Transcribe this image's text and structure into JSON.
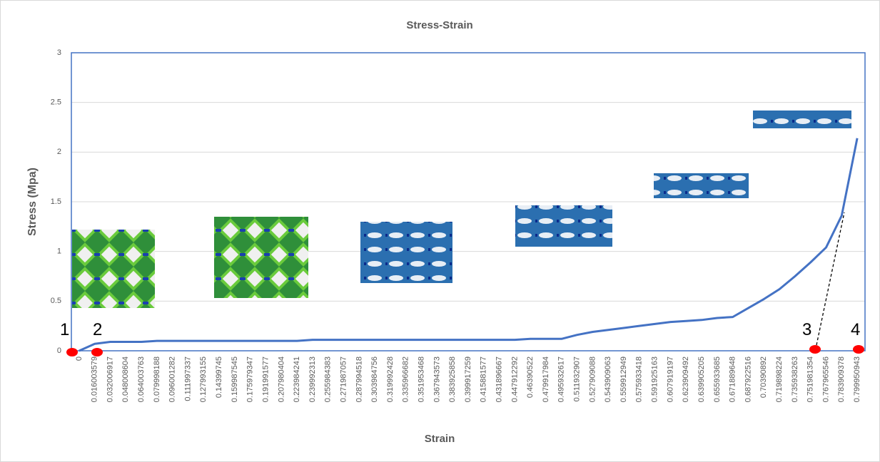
{
  "chart_data": {
    "type": "line",
    "title": "Stress-Strain",
    "x_label": "Strain",
    "y_label": "Stress (Mpa)",
    "categories": [
      "0",
      "0.016003579",
      "0.032006917",
      "0.048008604",
      "0.064003763",
      "0.079998188",
      "0.096001282",
      "0.111997337",
      "0.127993155",
      "0.14399745",
      "0.159987545",
      "0.175979347",
      "0.191991577",
      "0.207980404",
      "0.223984241",
      "0.239992313",
      "0.255984383",
      "0.271987057",
      "0.287994518",
      "0.303984756",
      "0.319992428",
      "0.335966682",
      "0.351953468",
      "0.367943573",
      "0.383925858",
      "0.399917259",
      "0.415881577",
      "0.431896667",
      "0.447912292",
      "0.46390522",
      "0.479917984",
      "0.495932617",
      "0.511932907",
      "0.527909088",
      "0.543909063",
      "0.559912949",
      "0.575933418",
      "0.591925163",
      "0.607919197",
      "0.623909492",
      "0.639905205",
      "0.655933685",
      "0.671889648",
      "0.687922516",
      "0.70390892",
      "0.719898224",
      "0.735938263",
      "0.751981354",
      "0.767965546",
      "0.783909378",
      "0.799950943"
    ],
    "series": [
      {
        "name": "Stress",
        "color": "#4472c4",
        "values": [
          0,
          0.07,
          0.09,
          0.09,
          0.09,
          0.1,
          0.1,
          0.1,
          0.1,
          0.1,
          0.1,
          0.1,
          0.1,
          0.1,
          0.1,
          0.11,
          0.11,
          0.11,
          0.11,
          0.11,
          0.11,
          0.11,
          0.11,
          0.11,
          0.11,
          0.11,
          0.11,
          0.11,
          0.11,
          0.12,
          0.12,
          0.12,
          0.16,
          0.19,
          0.21,
          0.23,
          0.25,
          0.27,
          0.29,
          0.3,
          0.31,
          0.33,
          0.34,
          0.43,
          0.52,
          0.62,
          0.75,
          0.89,
          1.04,
          1.36,
          2.14
        ]
      }
    ],
    "ylim": [
      0,
      3
    ],
    "yticks": [
      0,
      0.5,
      1,
      1.5,
      2,
      2.5,
      3
    ],
    "grid": true,
    "annotations": [
      "1",
      "2",
      "3",
      "4"
    ]
  }
}
